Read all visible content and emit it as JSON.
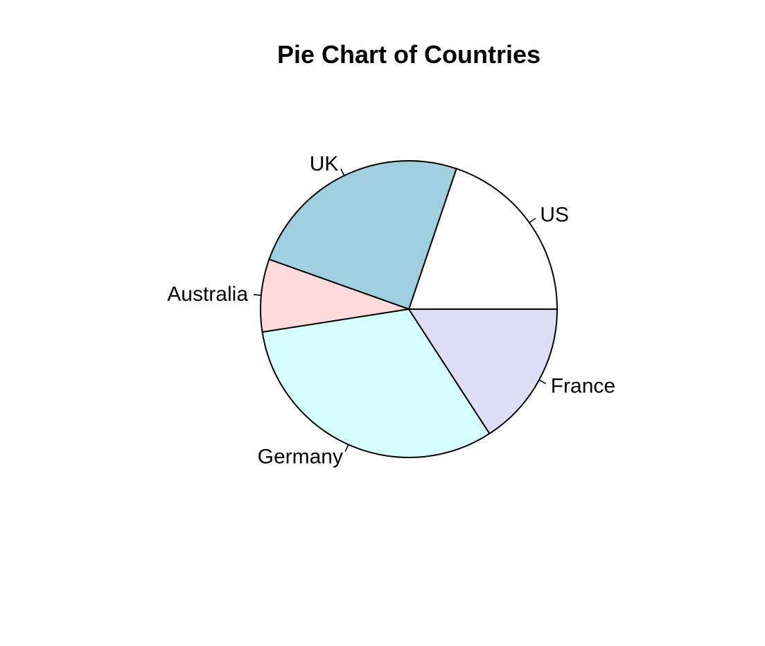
{
  "chart_data": {
    "type": "pie",
    "title": "Pie Chart of Countries",
    "direction": "counterclockwise",
    "start": "3 o'clock",
    "categories": [
      "US",
      "UK",
      "Australia",
      "Germany",
      "France"
    ],
    "values": [
      20,
      25,
      8,
      32,
      16
    ],
    "colors": [
      "#ffffff",
      "#a0cfe0",
      "#ffdcdb",
      "#d6ffff",
      "#dedef8"
    ]
  }
}
